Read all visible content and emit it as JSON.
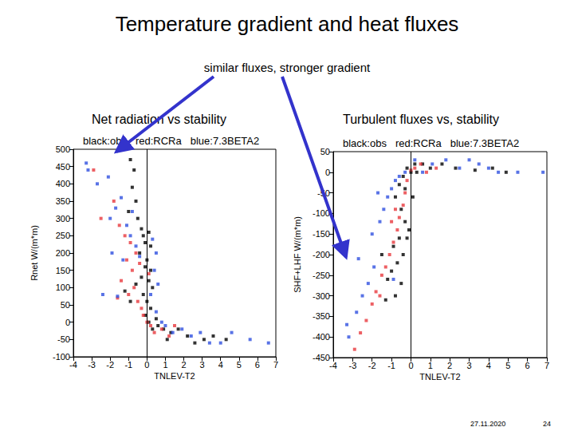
{
  "slide": {
    "title": "Temperature gradient and heat fluxes",
    "annotation": "similar fluxes, stronger gradient",
    "date": "27.11.2020",
    "page": "24"
  },
  "chart_data": [
    {
      "type": "scatter",
      "title": "Net radiation vs stability",
      "x_label": "TNLEV-T2",
      "y_label": "Rnet W/(m*m)",
      "xlim": [
        -4,
        7
      ],
      "xticks": [
        -4,
        -3,
        -2,
        -1,
        0,
        1,
        2,
        3,
        4,
        5,
        6,
        7
      ],
      "ylim": [
        -100,
        500
      ],
      "yticks": [
        -100,
        -50,
        0,
        50,
        100,
        150,
        200,
        250,
        300,
        350,
        400,
        450,
        500
      ],
      "grid": false,
      "legend": "top",
      "marker": "square",
      "vline_x": 0,
      "series": [
        {
          "name": "black:obs",
          "color": "#000000",
          "values": [
            [
              -0.9,
              470
            ],
            [
              -0.7,
              440
            ],
            [
              -0.8,
              390
            ],
            [
              -0.6,
              350
            ],
            [
              -1.0,
              320
            ],
            [
              -0.5,
              300
            ],
            [
              -0.3,
              270
            ],
            [
              -0.2,
              250
            ],
            [
              -0.1,
              230
            ],
            [
              0.1,
              260
            ],
            [
              0.2,
              220
            ],
            [
              -0.4,
              200
            ],
            [
              0.0,
              180
            ],
            [
              -0.1,
              160
            ],
            [
              0.2,
              150
            ],
            [
              -0.3,
              130
            ],
            [
              0.1,
              120
            ],
            [
              -0.6,
              110
            ],
            [
              0.3,
              100
            ],
            [
              -0.2,
              80
            ],
            [
              0.0,
              60
            ],
            [
              0.2,
              40
            ],
            [
              -0.1,
              20
            ],
            [
              0.1,
              0
            ],
            [
              0.3,
              -20
            ],
            [
              0.6,
              -10
            ],
            [
              0.9,
              -20
            ],
            [
              1.3,
              -30
            ],
            [
              1.7,
              -20
            ],
            [
              2.2,
              -40
            ],
            [
              2.6,
              -60
            ],
            [
              3.1,
              -50
            ],
            [
              3.6,
              -40
            ],
            [
              4.3,
              -50
            ],
            [
              -1.2,
              90
            ],
            [
              -0.9,
              60
            ],
            [
              0.5,
              10
            ],
            [
              1.1,
              -50
            ]
          ]
        },
        {
          "name": "red:RCRa",
          "color": "#e8383d",
          "values": [
            [
              -2.9,
              440
            ],
            [
              -2.5,
              300
            ],
            [
              -1.8,
              350
            ],
            [
              -1.5,
              280
            ],
            [
              -1.2,
              250
            ],
            [
              -0.9,
              230
            ],
            [
              -1.1,
              180
            ],
            [
              -0.8,
              150
            ],
            [
              -1.4,
              120
            ],
            [
              -0.7,
              100
            ],
            [
              -1.0,
              80
            ],
            [
              -0.5,
              60
            ],
            [
              -1.6,
              70
            ],
            [
              -0.3,
              40
            ],
            [
              -0.2,
              20
            ],
            [
              0.0,
              0
            ],
            [
              0.2,
              -10
            ],
            [
              0.4,
              -30
            ],
            [
              0.8,
              -20
            ],
            [
              1.2,
              -40
            ],
            [
              1.5,
              -10
            ],
            [
              -0.6,
              200
            ],
            [
              -0.4,
              170
            ],
            [
              0.1,
              140
            ]
          ]
        },
        {
          "name": "blue:7.3BETA2",
          "color": "#3050e0",
          "values": [
            [
              -3.3,
              460
            ],
            [
              -3.2,
              440
            ],
            [
              -2.7,
              400
            ],
            [
              -2.1,
              420
            ],
            [
              -2.0,
              300
            ],
            [
              -1.7,
              330
            ],
            [
              -1.4,
              360
            ],
            [
              -1.1,
              280
            ],
            [
              -0.9,
              250
            ],
            [
              -2.4,
              80
            ],
            [
              -1.6,
              75
            ],
            [
              -1.3,
              180
            ],
            [
              -0.6,
              220
            ],
            [
              -0.4,
              190
            ],
            [
              0.3,
              240
            ],
            [
              0.5,
              200
            ],
            [
              0.4,
              150
            ],
            [
              0.6,
              110
            ],
            [
              0.2,
              80
            ],
            [
              0.5,
              30
            ],
            [
              0.8,
              0
            ],
            [
              1.0,
              -10
            ],
            [
              1.4,
              -30
            ],
            [
              1.9,
              -20
            ],
            [
              2.4,
              -40
            ],
            [
              2.9,
              -30
            ],
            [
              3.4,
              -60
            ],
            [
              4.0,
              -60
            ],
            [
              4.6,
              -30
            ],
            [
              5.6,
              -50
            ],
            [
              6.6,
              -60
            ],
            [
              -0.8,
              320
            ],
            [
              -1.9,
              200
            ]
          ]
        }
      ]
    },
    {
      "type": "scatter",
      "title": "Turbulent fluxes vs, stability",
      "x_label": "TNLEV-T2",
      "y_label": "SHF+LHF W/(m*m)",
      "xlim": [
        -4,
        7
      ],
      "xticks": [
        -4,
        -3,
        -2,
        -1,
        0,
        1,
        2,
        3,
        4,
        5,
        6,
        7
      ],
      "ylim": [
        -450,
        50
      ],
      "yticks": [
        -450,
        -400,
        -350,
        -300,
        -250,
        -200,
        -150,
        -100,
        -50,
        0,
        50
      ],
      "grid": false,
      "legend": "top",
      "marker": "square",
      "vline_x": 0,
      "series": [
        {
          "name": "black:obs",
          "color": "#000000",
          "values": [
            [
              -0.2,
              10
            ],
            [
              0.0,
              0
            ],
            [
              0.2,
              20
            ],
            [
              -0.4,
              -10
            ],
            [
              -0.6,
              -30
            ],
            [
              -0.8,
              -60
            ],
            [
              -0.5,
              -90
            ],
            [
              -0.3,
              -120
            ],
            [
              -0.1,
              -140
            ],
            [
              -0.6,
              -160
            ],
            [
              -0.9,
              -180
            ],
            [
              -0.4,
              -200
            ],
            [
              -0.7,
              -220
            ],
            [
              -1.0,
              -240
            ],
            [
              -1.2,
              -260
            ],
            [
              -0.5,
              -270
            ],
            [
              -0.8,
              -300
            ],
            [
              -1.3,
              -310
            ],
            [
              -0.2,
              -160
            ],
            [
              0.3,
              0
            ],
            [
              0.6,
              20
            ],
            [
              1.0,
              10
            ],
            [
              1.6,
              20
            ],
            [
              2.3,
              10
            ],
            [
              3.3,
              5
            ],
            [
              4.2,
              10
            ],
            [
              4.9,
              0
            ],
            [
              0.1,
              -60
            ],
            [
              -0.3,
              -40
            ],
            [
              -1.5,
              -200
            ]
          ]
        },
        {
          "name": "red:RCRa",
          "color": "#e8383d",
          "values": [
            [
              -2.9,
              -430
            ],
            [
              -2.6,
              -390
            ],
            [
              -2.3,
              -360
            ],
            [
              -2.0,
              -320
            ],
            [
              -1.8,
              -290
            ],
            [
              -1.5,
              -250
            ],
            [
              -1.3,
              -230
            ],
            [
              -1.1,
              -200
            ],
            [
              -0.9,
              -170
            ],
            [
              -0.7,
              -140
            ],
            [
              -0.6,
              -110
            ],
            [
              -0.4,
              -80
            ],
            [
              -0.3,
              -50
            ],
            [
              -0.2,
              -20
            ],
            [
              0.0,
              5
            ],
            [
              0.2,
              10
            ],
            [
              0.5,
              20
            ],
            [
              -1.6,
              -300
            ],
            [
              -1.0,
              -120
            ],
            [
              -0.8,
              -90
            ],
            [
              0.8,
              0
            ],
            [
              1.3,
              10
            ]
          ]
        },
        {
          "name": "blue:7.3BETA2",
          "color": "#3050e0",
          "values": [
            [
              -3.3,
              -370
            ],
            [
              -3.2,
              -400
            ],
            [
              -2.8,
              -340
            ],
            [
              -2.5,
              -300
            ],
            [
              -2.2,
              -270
            ],
            [
              -1.9,
              -230
            ],
            [
              -2.7,
              -210
            ],
            [
              -1.6,
              -120
            ],
            [
              -1.4,
              -90
            ],
            [
              -1.2,
              -60
            ],
            [
              -1.0,
              -40
            ],
            [
              -0.8,
              -20
            ],
            [
              -0.6,
              -10
            ],
            [
              -0.3,
              0
            ],
            [
              -1.7,
              -50
            ],
            [
              0.2,
              30
            ],
            [
              0.6,
              0
            ],
            [
              1.1,
              20
            ],
            [
              1.8,
              30
            ],
            [
              2.5,
              10
            ],
            [
              3.0,
              30
            ],
            [
              3.5,
              20
            ],
            [
              4.0,
              10
            ],
            [
              4.5,
              0
            ],
            [
              5.5,
              0
            ],
            [
              6.8,
              0
            ],
            [
              -2.0,
              -150
            ],
            [
              -0.9,
              -260
            ]
          ]
        }
      ]
    }
  ]
}
